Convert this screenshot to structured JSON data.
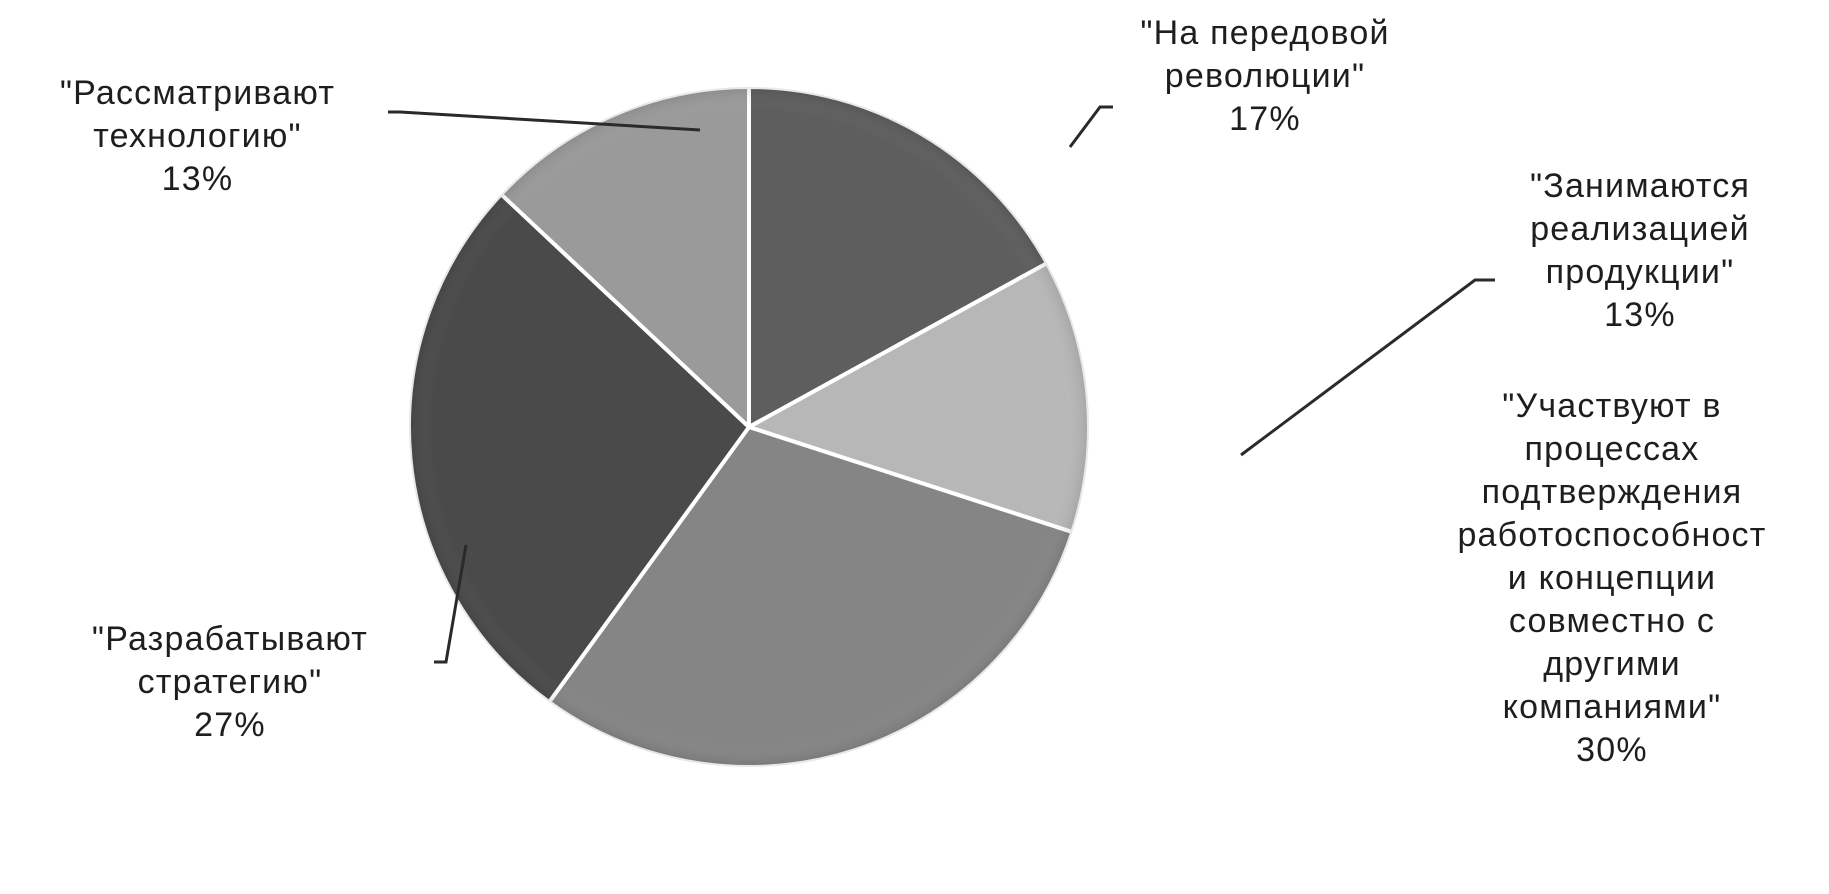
{
  "chart_data": {
    "type": "pie",
    "title": "",
    "start_angle_deg": 90,
    "direction": "clockwise",
    "legend": "none",
    "slices": [
      {
        "label": "\"На передовой революции\"",
        "lines": [
          "\"На передовой",
          "революции\""
        ],
        "value": 17,
        "value_label": "17%",
        "color": "#5e5e5e"
      },
      {
        "label": "\"Занимаются реализацией продукции\"",
        "lines": [
          "\"Занимаются",
          "реализацией",
          "продукции\""
        ],
        "value": 13,
        "value_label": "13%",
        "color": "#b7b7b7"
      },
      {
        "label": "\"Участвуют в процессах подтверждения работоспособност и концепции совместно с другими компаниями\"",
        "lines": [
          "\"Участвуют в",
          "процессах",
          "подтверждения",
          "работоспособност",
          "и концепции",
          "совместно с",
          "другими",
          "компаниями\""
        ],
        "value": 30,
        "value_label": "30%",
        "color": "#858585"
      },
      {
        "label": "\"Разрабатывают стратегию\"",
        "lines": [
          "\"Разрабатывают",
          "стратегию\""
        ],
        "value": 27,
        "value_label": "27%",
        "color": "#4a4a4a"
      },
      {
        "label": "\"Рассматривают технологию\"",
        "lines": [
          "\"Рассматривают",
          "технологию\""
        ],
        "value": 13,
        "value_label": "13%",
        "color": "#9a9a9a"
      }
    ]
  }
}
